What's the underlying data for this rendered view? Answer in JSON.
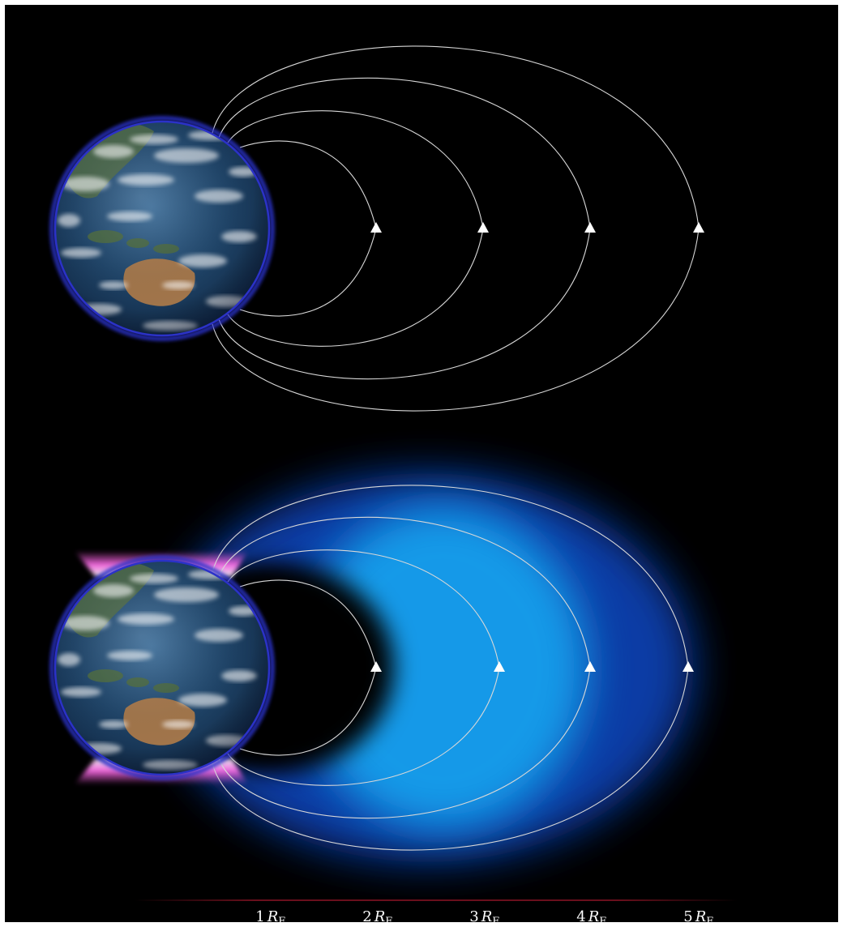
{
  "diagram": {
    "colors": {
      "background": "#000000",
      "field_line": "#d8d8d8",
      "arrow": "#ffffff",
      "earth_rim": "#2b32c8",
      "plasma_inner": "#0a3fae",
      "plasma_peak": "#12a4f0",
      "auroral_glow": "#ff5ae6",
      "scale_bar": "#6a0f1c"
    },
    "panels": [
      {
        "name": "top-panel",
        "field_line_L": [
          1,
          2,
          3,
          4
        ],
        "plasma_cloud": false,
        "auroral_glow": false
      },
      {
        "name": "bottom-panel",
        "field_line_L": [
          1,
          2,
          3,
          4
        ],
        "plasma_cloud": true,
        "auroral_glow": true
      }
    ],
    "scale": [
      {
        "number": "1",
        "symbol": "R",
        "subscript": "E"
      },
      {
        "number": "2",
        "symbol": "R",
        "subscript": "E"
      },
      {
        "number": "3",
        "symbol": "R",
        "subscript": "E"
      },
      {
        "number": "4",
        "symbol": "R",
        "subscript": "E"
      },
      {
        "number": "5",
        "symbol": "R",
        "subscript": "E"
      }
    ]
  }
}
